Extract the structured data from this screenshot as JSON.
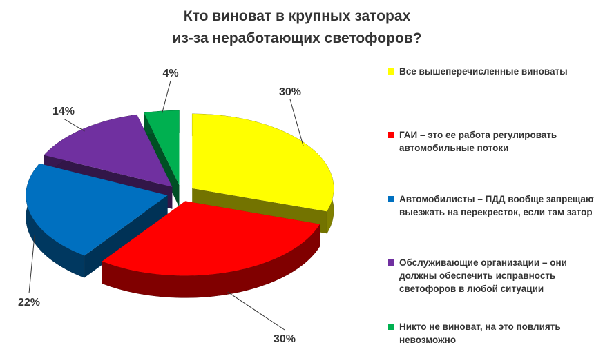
{
  "chart_data": {
    "type": "pie",
    "title": [
      "Кто виноват в крупных заторах",
      "из-за неработающих светофоров?"
    ],
    "categories": [
      "Все вышеперечисленные виноваты",
      "ГАИ – это ее работа регулировать автомобильные потоки",
      "Автомобилисты – ПДД вообще запрещают выезжать на перекресток, если там затор",
      "Обслуживающие организации – они должны обеспечить исправность светофоров в любой ситуации",
      "Никто не виноват, на это повлиять невозможно"
    ],
    "values": [
      30,
      30,
      22,
      14,
      4
    ],
    "value_labels": [
      "30%",
      "30%",
      "22%",
      "14%",
      "4%"
    ],
    "colors": [
      "#ffff00",
      "#ff0000",
      "#0070c0",
      "#7030a0",
      "#00b050"
    ],
    "legend": "right"
  }
}
